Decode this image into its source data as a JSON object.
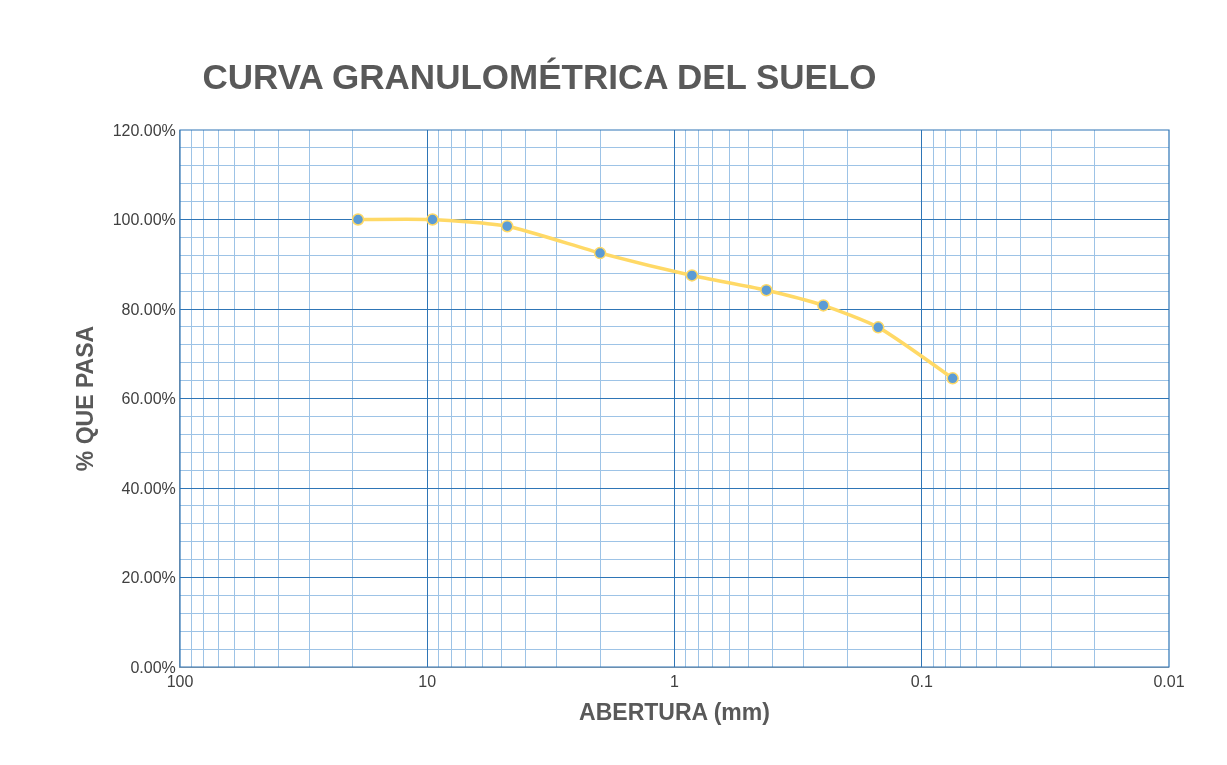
{
  "chart_data": {
    "type": "line",
    "title": "CURVA GRANULOMÉTRICA DEL SUELO",
    "xlabel": "ABERTURA (mm)",
    "ylabel": "% QUE PASA",
    "log": "x",
    "xlim": [
      100,
      0.01
    ],
    "xticks": [
      100,
      {
        "value": 90,
        "label": null
      },
      {
        "value": 80,
        "label": null
      },
      {
        "value": 70,
        "label": null
      },
      {
        "value": 60,
        "label": null
      },
      {
        "value": 50,
        "label": null
      },
      {
        "value": 40,
        "label": null
      },
      {
        "value": 30,
        "label": null
      },
      {
        "value": 20,
        "label": null
      },
      10,
      {
        "value": 9,
        "label": null
      },
      {
        "value": 8,
        "label": null
      },
      {
        "value": 7,
        "label": null
      },
      {
        "value": 6,
        "label": null
      },
      {
        "value": 5,
        "label": null
      },
      {
        "value": 4,
        "label": null
      },
      {
        "value": 3,
        "label": null
      },
      {
        "value": 2,
        "label": null
      },
      1,
      {
        "value": 0.9,
        "label": null
      },
      {
        "value": 0.8,
        "label": null
      },
      {
        "value": 0.7,
        "label": null
      },
      {
        "value": 0.6,
        "label": null
      },
      {
        "value": 0.5,
        "label": null
      },
      {
        "value": 0.4,
        "label": null
      },
      {
        "value": 0.3,
        "label": null
      },
      {
        "value": 0.2,
        "label": null
      },
      0.1,
      {
        "value": 0.09,
        "label": null
      },
      {
        "value": 0.08,
        "label": null
      },
      {
        "value": 0.07,
        "label": null
      },
      {
        "value": 0.06,
        "label": null
      },
      {
        "value": 0.05,
        "label": null
      },
      {
        "value": 0.04,
        "label": null
      },
      {
        "value": 0.03,
        "label": null
      },
      {
        "value": 0.02,
        "label": null
      },
      0.01
    ],
    "ylim": [
      0,
      120
    ],
    "yticks": [
      {
        "value": 0,
        "label": "0.00%"
      },
      {
        "value": 4,
        "label": null
      },
      {
        "value": 8,
        "label": null
      },
      {
        "value": 12,
        "label": null
      },
      {
        "value": 16,
        "label": null
      },
      {
        "value": 20,
        "label": "20.00%"
      },
      {
        "value": 24,
        "label": null
      },
      {
        "value": 28,
        "label": null
      },
      {
        "value": 32,
        "label": null
      },
      {
        "value": 36,
        "label": null
      },
      {
        "value": 40,
        "label": "40.00%"
      },
      {
        "value": 44,
        "label": null
      },
      {
        "value": 48,
        "label": null
      },
      {
        "value": 52,
        "label": null
      },
      {
        "value": 56,
        "label": null
      },
      {
        "value": 60,
        "label": "60.00%"
      },
      {
        "value": 64,
        "label": null
      },
      {
        "value": 68,
        "label": null
      },
      {
        "value": 72,
        "label": null
      },
      {
        "value": 76,
        "label": null
      },
      {
        "value": 80,
        "label": "80.00%"
      },
      {
        "value": 84,
        "label": null
      },
      {
        "value": 88,
        "label": null
      },
      {
        "value": 92,
        "label": null
      },
      {
        "value": 96,
        "label": null
      },
      {
        "value": 100,
        "label": "100.00%"
      },
      {
        "value": 104,
        "label": null
      },
      {
        "value": 108,
        "label": null
      },
      {
        "value": 112,
        "label": null
      },
      {
        "value": 116,
        "label": null
      },
      {
        "value": 120,
        "label": "120.00%"
      }
    ],
    "grid": true,
    "marker": "circle",
    "line_style": "solid",
    "x": [
      19.05,
      9.525,
      4.75,
      2.0,
      0.85,
      0.425,
      0.25,
      0.15,
      0.075
    ],
    "series": [
      {
        "color": "#ffd966",
        "colors": [
          "#5b9bd5",
          "#5b9bd5",
          "#5b9bd5",
          "#5b9bd5",
          "#5b9bd5",
          "#5b9bd5",
          "#5b9bd5",
          "#5b9bd5",
          "#5b9bd5"
        ],
        "values": [
          100,
          100,
          98.5,
          92.5,
          87.5,
          84.2,
          80.8,
          75.9,
          64.5
        ]
      }
    ]
  }
}
